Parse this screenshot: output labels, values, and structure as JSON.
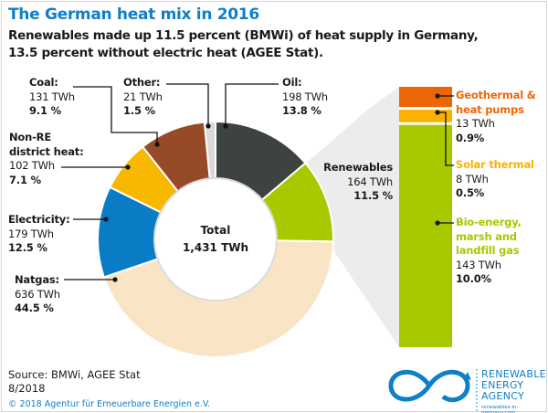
{
  "title": "The German heat mix in 2016",
  "subtitle_line1": "Renewables made up 11.5 percent (BMWi) of heat supply in Germany,",
  "subtitle_line2": "13.5 percent without electric heat (AGEE Stat).",
  "chart_data": [
    {
      "type": "pie",
      "variant": "donut",
      "center_label": "Total",
      "center_value": "1,431 TWh",
      "slices": [
        {
          "name": "Oil:",
          "twh": 198,
          "value_label": "198 TWh",
          "percent": 13.8,
          "percent_label": "13.8 %",
          "color": "#3d433f"
        },
        {
          "name": "Renewables",
          "twh": 164,
          "value_label": "164 TWh",
          "percent": 11.5,
          "percent_label": "11.5 %",
          "color": "#a9c800"
        },
        {
          "name": "Natgas:",
          "twh": 636,
          "value_label": "636 TWh",
          "percent": 44.5,
          "percent_label": "44.5 %",
          "color": "#f9e5c6"
        },
        {
          "name": "Electricity:",
          "twh": 179,
          "value_label": "179 TWh",
          "percent": 12.5,
          "percent_label": "12.5 %",
          "color": "#0a7cc6"
        },
        {
          "name": "Non-RE district heat:",
          "name_line1": "Non-RE",
          "name_line2": "district heat:",
          "twh": 102,
          "value_label": "102 TWh",
          "percent": 7.1,
          "percent_label": "7.1 %",
          "color": "#f8b800"
        },
        {
          "name": "Coal:",
          "twh": 131,
          "value_label": "131 TWh",
          "percent": 9.1,
          "percent_label": "9.1 %",
          "color": "#974a28"
        },
        {
          "name": "Other:",
          "twh": 21,
          "value_label": "21 TWh",
          "percent": 1.5,
          "percent_label": "1.5 %",
          "color": "#d9d9d9"
        }
      ]
    },
    {
      "type": "bar",
      "variant": "stacked",
      "segments": [
        {
          "name": "Geothermal & heat pumps",
          "name_line1": "Geothermal &",
          "name_line2": "heat pumps",
          "twh": 13,
          "value_label": "13 TWh",
          "percent": 0.9,
          "percent_label": "0.9%",
          "color": "#ec6608"
        },
        {
          "name": "Solar thermal",
          "twh": 8,
          "value_label": "8 TWh",
          "percent": 0.5,
          "percent_label": "0.5%",
          "color": "#f9b200"
        },
        {
          "name": "Bio-energy, marsh and landfill gas",
          "name_line1": "Bio-energy,",
          "name_line2": "marsh and",
          "name_line3": "landfill gas",
          "twh": 143,
          "value_label": "143 TWh",
          "percent": 10.0,
          "percent_label": "10.0%",
          "color": "#a9c800"
        }
      ]
    }
  ],
  "source_line1": "Source: BMWi, AGEE Stat",
  "source_line2": "8/2018",
  "copyright": "© 2018 Agentur für Erneuerbare Energien e.V.",
  "logo": {
    "line1": "RENEWABLE",
    "line2": "ENERGY",
    "line3": "AGENCY",
    "url": "renewables-in-germany.com",
    "color": "#0f7fc8"
  }
}
